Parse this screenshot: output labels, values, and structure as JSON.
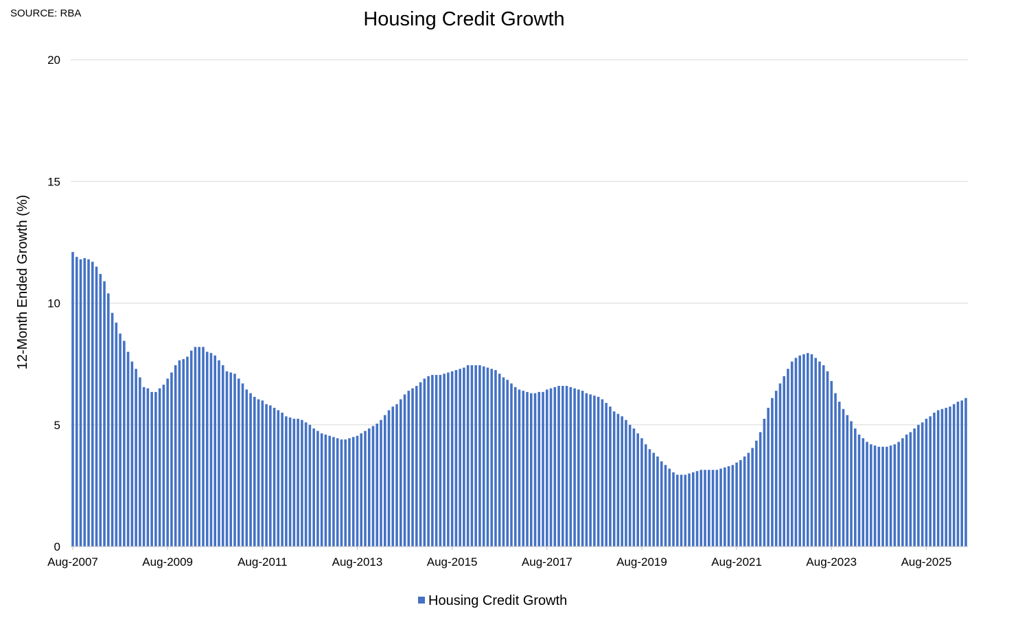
{
  "source_note": "SOURCE: RBA",
  "chart_data": {
    "type": "bar",
    "title": "Housing Credit Growth",
    "xlabel": "",
    "ylabel": "12-Month Ended Growth (%)",
    "ylim": [
      0,
      20
    ],
    "y_ticks": [
      "0",
      "5",
      "10",
      "15",
      "20"
    ],
    "x_tick_labels": [
      "Aug-2007",
      "Aug-2009",
      "Aug-2011",
      "Aug-2013",
      "Aug-2015",
      "Aug-2017",
      "Aug-2019",
      "Aug-2021",
      "Aug-2023",
      "Aug-2025"
    ],
    "grid": true,
    "legend_position": "bottom",
    "start_month": "Aug-2007",
    "end_month": "Aug-2025",
    "series": [
      {
        "name": "Housing Credit Growth",
        "color": "#4472c4",
        "values": [
          12.1,
          11.9,
          11.8,
          11.85,
          11.8,
          11.7,
          11.5,
          11.2,
          10.9,
          10.4,
          9.6,
          9.2,
          8.75,
          8.45,
          8.0,
          7.6,
          7.3,
          6.95,
          6.55,
          6.5,
          6.35,
          6.35,
          6.5,
          6.65,
          6.9,
          7.15,
          7.45,
          7.65,
          7.7,
          7.8,
          8.05,
          8.2,
          8.2,
          8.2,
          8.0,
          7.95,
          7.85,
          7.65,
          7.45,
          7.2,
          7.15,
          7.1,
          6.9,
          6.7,
          6.45,
          6.3,
          6.15,
          6.05,
          6.0,
          5.85,
          5.8,
          5.7,
          5.6,
          5.5,
          5.35,
          5.3,
          5.25,
          5.25,
          5.2,
          5.1,
          5.0,
          4.85,
          4.75,
          4.65,
          4.6,
          4.55,
          4.5,
          4.45,
          4.4,
          4.4,
          4.45,
          4.5,
          4.55,
          4.65,
          4.75,
          4.85,
          4.95,
          5.05,
          5.2,
          5.4,
          5.6,
          5.75,
          5.85,
          6.05,
          6.25,
          6.4,
          6.5,
          6.6,
          6.75,
          6.9,
          7.0,
          7.05,
          7.05,
          7.05,
          7.1,
          7.15,
          7.2,
          7.25,
          7.3,
          7.35,
          7.45,
          7.45,
          7.45,
          7.45,
          7.4,
          7.35,
          7.3,
          7.25,
          7.1,
          6.95,
          6.85,
          6.7,
          6.55,
          6.45,
          6.4,
          6.35,
          6.3,
          6.3,
          6.35,
          6.35,
          6.45,
          6.5,
          6.55,
          6.6,
          6.6,
          6.6,
          6.55,
          6.5,
          6.45,
          6.4,
          6.3,
          6.25,
          6.2,
          6.15,
          6.05,
          5.9,
          5.75,
          5.55,
          5.45,
          5.35,
          5.2,
          5.0,
          4.85,
          4.65,
          4.45,
          4.2,
          4.0,
          3.85,
          3.7,
          3.5,
          3.35,
          3.2,
          3.05,
          2.95,
          2.95,
          2.95,
          3.0,
          3.05,
          3.1,
          3.15,
          3.15,
          3.15,
          3.15,
          3.15,
          3.2,
          3.25,
          3.3,
          3.35,
          3.45,
          3.55,
          3.7,
          3.85,
          4.05,
          4.35,
          4.7,
          5.25,
          5.7,
          6.1,
          6.4,
          6.7,
          7.0,
          7.3,
          7.6,
          7.75,
          7.85,
          7.9,
          7.95,
          7.9,
          7.75,
          7.6,
          7.45,
          7.2,
          6.8,
          6.3,
          5.95,
          5.65,
          5.4,
          5.15,
          4.85,
          4.6,
          4.45,
          4.3,
          4.2,
          4.15,
          4.1,
          4.1,
          4.1,
          4.15,
          4.2,
          4.3,
          4.45,
          4.6,
          4.7,
          4.85,
          5.0,
          5.1,
          5.25,
          5.35,
          5.5,
          5.6,
          5.65,
          5.7,
          5.75,
          5.85,
          5.95,
          6.0,
          6.1
        ]
      }
    ]
  }
}
